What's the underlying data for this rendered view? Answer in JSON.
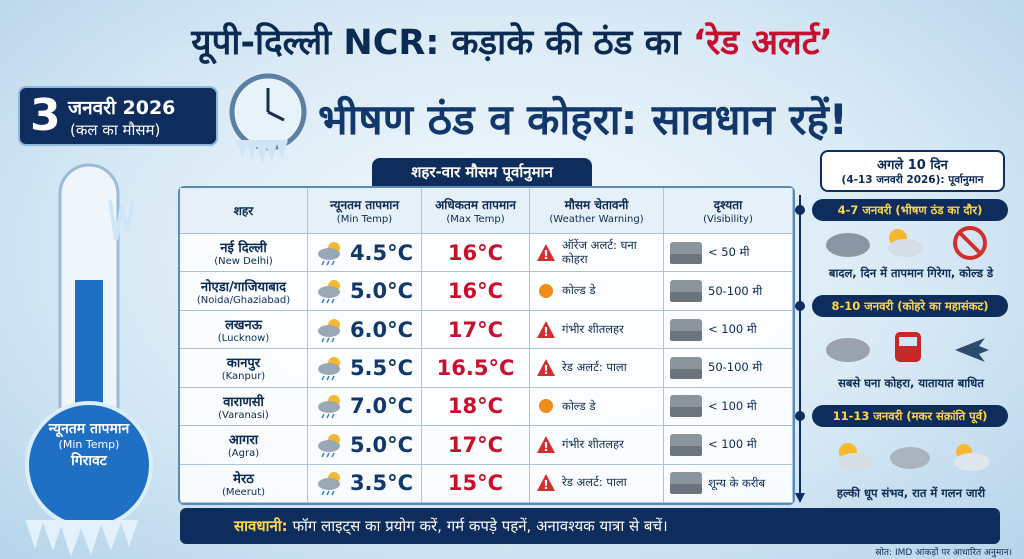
{
  "header": {
    "title": "यूपी-दिल्ली NCR: कड़ाके की ठंड का",
    "title_highlight": "‘रेड अलर्ट’",
    "date_day": "3",
    "date_month": "जनवरी 2026",
    "date_note": "(कल का मौसम)",
    "headline": "भीषण ठंड व कोहरा: सावधान रहें!"
  },
  "thermometer": {
    "label": "न्यूनतम तापमान",
    "label_en": "(Min Temp)",
    "label_trend": "गिरावट"
  },
  "table": {
    "title": "शहर-वार मौसम पूर्वानुमान",
    "columns": [
      {
        "hi": "शहर"
      },
      {
        "hi": "न्यूनतम तापमान",
        "en": "(Min Temp)"
      },
      {
        "hi": "अधिकतम तापमान",
        "en": "(Max Temp)"
      },
      {
        "hi": "मौसम चेतावनी",
        "en": "(Weather Warning)"
      },
      {
        "hi": "दृश्यता",
        "en": "(Visibility)"
      }
    ],
    "rows": [
      {
        "city": "नई दिल्ली",
        "city_en": "(New Delhi)",
        "min": "4.5°C",
        "max": "16°C",
        "warning": "ऑरेंज अलर्ट: घना कोहरा",
        "visibility": "< 50 मी"
      },
      {
        "city": "नोएडा/गाजियाबाद",
        "city_en": "(Noida/Ghaziabad)",
        "min": "5.0°C",
        "max": "16°C",
        "warning": "कोल्ड डे",
        "visibility": "50-100 मी"
      },
      {
        "city": "लखनऊ",
        "city_en": "(Lucknow)",
        "min": "6.0°C",
        "max": "17°C",
        "warning": "गंभीर शीतलहर",
        "visibility": "< 100 मी"
      },
      {
        "city": "कानपुर",
        "city_en": "(Kanpur)",
        "min": "5.5°C",
        "max": "16.5°C",
        "warning": "रेड अलर्ट: पाला",
        "visibility": "50-100 मी"
      },
      {
        "city": "वाराणसी",
        "city_en": "(Varanasi)",
        "min": "7.0°C",
        "max": "18°C",
        "warning": "कोल्ड डे",
        "visibility": "< 100 मी"
      },
      {
        "city": "आगरा",
        "city_en": "(Agra)",
        "min": "5.0°C",
        "max": "17°C",
        "warning": "गंभीर शीतलहर",
        "visibility": "< 100 मी"
      },
      {
        "city": "मेरठ",
        "city_en": "(Meerut)",
        "min": "3.5°C",
        "max": "15°C",
        "warning": "रेड अलर्ट: पाला",
        "visibility": "शून्य के करीब"
      }
    ]
  },
  "forecast": {
    "title": "अगले 10 दिन",
    "subtitle": "(4-13 जनवरी 2026): पूर्वानुमान",
    "periods": [
      {
        "label": "4-7 जनवरी (भीषण ठंड का दौर)",
        "caption": "बादल, दिन में तापमान गिरेगा, कोल्ड डे"
      },
      {
        "label": "8-10 जनवरी (कोहरे का महासंकट)",
        "caption": "सबसे घना कोहरा, यातायात बाधित"
      },
      {
        "label": "11-13 जनवरी (मकर संक्रांति पूर्व)",
        "caption": "हल्की धूप संभव, रात में गलन जारी"
      }
    ]
  },
  "footer": {
    "caution_label": "सावधानी:",
    "caution_text": "फॉग लाइट्स का प्रयोग करें, गर्म कपड़े पहनें, अनावश्यक यात्रा से बचें।",
    "source": "स्रोत: IMD आंकड़ों पर आधारित अनुमान।"
  }
}
